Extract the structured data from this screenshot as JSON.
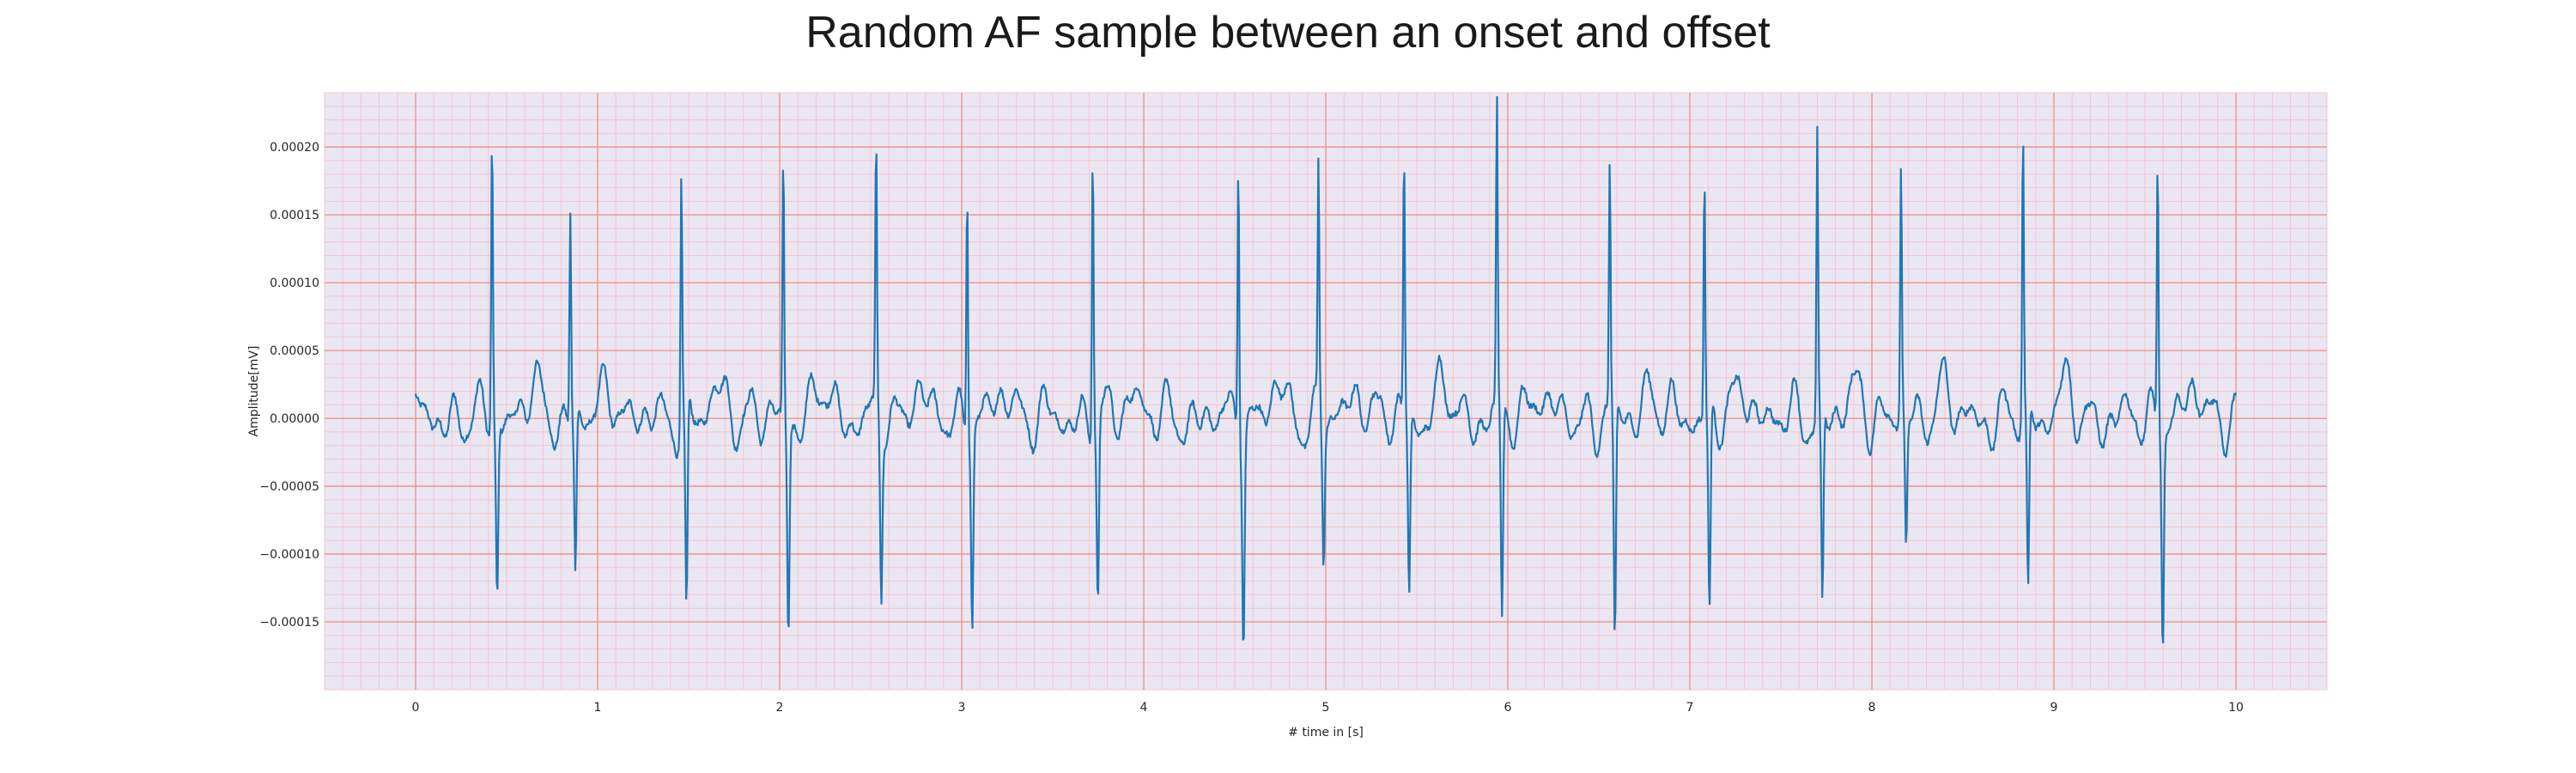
{
  "chart_data": {
    "type": "line",
    "title": "Random AF sample between an onset and offset",
    "xlabel": "# time in [s]",
    "ylabel": "Amplitude[mV]",
    "xlim": [
      -0.5,
      10.5
    ],
    "ylim": [
      -0.0002,
      0.00024
    ],
    "x_ticks": [
      0,
      1,
      2,
      3,
      4,
      5,
      6,
      7,
      8,
      9,
      10
    ],
    "x_tick_labels": [
      "0",
      "1",
      "2",
      "3",
      "4",
      "5",
      "6",
      "7",
      "8",
      "9",
      "10"
    ],
    "y_ticks": [
      -0.00015,
      -0.0001,
      -5e-05,
      0,
      5e-05,
      0.0001,
      0.00015,
      0.0002
    ],
    "y_tick_labels": [
      "−0.00015",
      "−0.00010",
      "−0.00005",
      "0.00000",
      "0.00005",
      "0.00010",
      "0.00015",
      "0.00020"
    ],
    "grid": true,
    "major_grid_color": "#f28b82",
    "minor_grid_color": "#f3c6d0",
    "background_color": "#eae7f2",
    "line_color": "#1f77b4",
    "series": [
      {
        "r_peaks": [
          {
            "t": 0.42,
            "peak": 0.00022,
            "trough": -0.00013
          },
          {
            "t": 0.85,
            "peak": 0.000157,
            "trough": -0.000117
          },
          {
            "t": 1.46,
            "peak": 0.00019,
            "trough": -0.000158
          },
          {
            "t": 2.02,
            "peak": 0.000195,
            "trough": -0.000154
          },
          {
            "t": 2.53,
            "peak": 0.000193,
            "trough": -0.000127
          },
          {
            "t": 3.03,
            "peak": 0.000189,
            "trough": -0.000143
          },
          {
            "t": 3.72,
            "peak": 0.000218,
            "trough": -0.000136
          },
          {
            "t": 4.52,
            "peak": 0.00021,
            "trough": -0.00015
          },
          {
            "t": 4.96,
            "peak": 0.000178,
            "trough": -0.000102
          },
          {
            "t": 5.43,
            "peak": 0.000197,
            "trough": -0.000129
          },
          {
            "t": 5.94,
            "peak": 0.000225,
            "trough": -0.000157
          },
          {
            "t": 6.56,
            "peak": 0.00018,
            "trough": -0.000178
          },
          {
            "t": 7.08,
            "peak": 0.000182,
            "trough": -0.000152
          },
          {
            "t": 7.7,
            "peak": 0.000213,
            "trough": -0.000144
          },
          {
            "t": 8.16,
            "peak": 0.000182,
            "trough": -0.000101
          },
          {
            "t": 8.83,
            "peak": 0.000212,
            "trough": -0.000143
          },
          {
            "t": 9.57,
            "peak": 0.000201,
            "trough": -0.000157
          }
        ],
        "baseline_range": [
          -3.5e-05,
          4.2e-05
        ]
      }
    ]
  }
}
